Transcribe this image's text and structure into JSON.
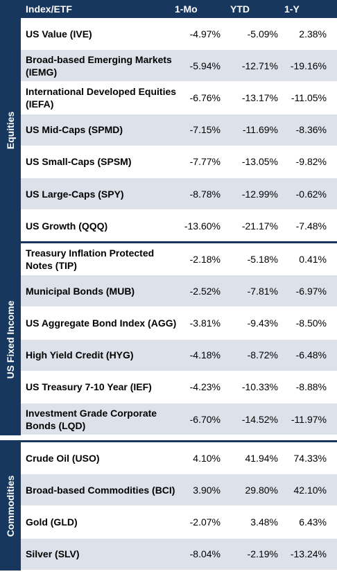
{
  "header": {
    "name": "Index/ETF",
    "col1": "1-Mo",
    "col2": "YTD",
    "col3": "1-Y"
  },
  "colors": {
    "header": "#17375e",
    "band": "#dce1ea"
  },
  "sections": [
    {
      "label": "Equities",
      "rows": [
        {
          "name": "US Value (IVE)",
          "m1": "-4.97%",
          "ytd": "-5.09%",
          "y1": "2.38%"
        },
        {
          "name": "Broad-based Emerging Markets (IEMG)",
          "m1": "-5.94%",
          "ytd": "-12.71%",
          "y1": "-19.16%"
        },
        {
          "name": "International Developed Equities (IEFA)",
          "m1": "-6.76%",
          "ytd": "-13.17%",
          "y1": "-11.05%"
        },
        {
          "name": "US Mid-Caps (SPMD)",
          "m1": "-7.15%",
          "ytd": "-11.69%",
          "y1": "-8.36%"
        },
        {
          "name": "US Small-Caps (SPSM)",
          "m1": "-7.77%",
          "ytd": "-13.05%",
          "y1": "-9.82%"
        },
        {
          "name": "US Large-Caps (SPY)",
          "m1": "-8.78%",
          "ytd": "-12.99%",
          "y1": "-0.62%"
        },
        {
          "name": "US Growth (QQQ)",
          "m1": "-13.60%",
          "ytd": "-21.17%",
          "y1": "-7.48%"
        }
      ]
    },
    {
      "label": "US Fixed Income",
      "rows": [
        {
          "name": "Treasury Inflation Protected Notes (TIP)",
          "m1": "-2.18%",
          "ytd": "-5.18%",
          "y1": "0.41%"
        },
        {
          "name": "Municipal Bonds (MUB)",
          "m1": "-2.52%",
          "ytd": "-7.81%",
          "y1": "-6.97%"
        },
        {
          "name": "US Aggregate Bond Index (AGG)",
          "m1": "-3.81%",
          "ytd": "-9.43%",
          "y1": "-8.50%"
        },
        {
          "name": "High Yield Credit (HYG)",
          "m1": "-4.18%",
          "ytd": "-8.72%",
          "y1": "-6.48%"
        },
        {
          "name": "US Treasury 7-10 Year (IEF)",
          "m1": "-4.23%",
          "ytd": "-10.33%",
          "y1": "-8.88%"
        },
        {
          "name": "Investment Grade Corporate Bonds (LQD)",
          "m1": "-6.70%",
          "ytd": "-14.52%",
          "y1": "-11.97%"
        }
      ]
    },
    {
      "label": "Commodities",
      "rows": [
        {
          "name": "Crude Oil (USO)",
          "m1": "4.10%",
          "ytd": "41.94%",
          "y1": "74.33%"
        },
        {
          "name": "Broad-based Commodities (BCI)",
          "m1": "3.90%",
          "ytd": "29.80%",
          "y1": "42.10%"
        },
        {
          "name": "Gold (GLD)",
          "m1": "-2.07%",
          "ytd": "3.48%",
          "y1": "6.43%"
        },
        {
          "name": "Silver (SLV)",
          "m1": "-8.04%",
          "ytd": "-2.19%",
          "y1": "-13.24%"
        }
      ]
    }
  ]
}
